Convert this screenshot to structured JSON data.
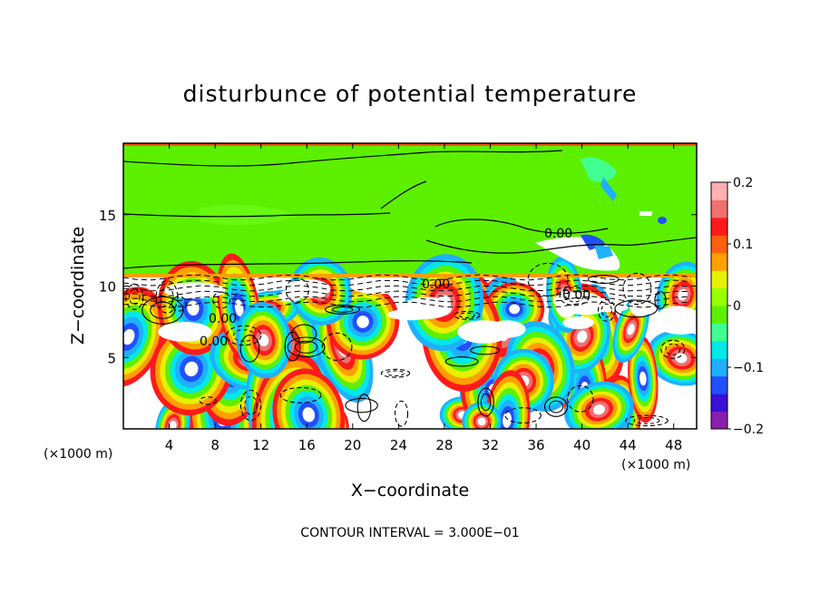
{
  "chart_data": {
    "type": "heatmap",
    "title": "disturbunce of potential temperature",
    "xlabel": "X−coordinate",
    "ylabel": "Z−coordinate",
    "x_unit": "(×1000 m)",
    "z_unit": "(×1000 m)",
    "xlim": [
      0,
      50
    ],
    "zlim": [
      0,
      20
    ],
    "x_ticks": [
      "4",
      "8",
      "12",
      "16",
      "20",
      "24",
      "28",
      "32",
      "36",
      "40",
      "44",
      "48"
    ],
    "z_ticks": [
      "5",
      "10",
      "15"
    ],
    "colorbar": {
      "range": [
        -0.2,
        0.2
      ],
      "tick_labels": [
        "0.2",
        "0.1",
        "0",
        "−0.1",
        "−0.2"
      ],
      "colors": [
        "#8a1fae",
        "#3a0fd8",
        "#2050ff",
        "#1fb0ff",
        "#00e8e8",
        "#40ff90",
        "#5cf000",
        "#99ff00",
        "#e6f000",
        "#ffa000",
        "#ff6010",
        "#ff1a1a",
        "#f07070",
        "#ffb0b0"
      ]
    },
    "contour_labels": [
      "0.00",
      "0.00",
      "0.00",
      "0.00",
      "0.00"
    ],
    "footer": "CONTOUR INTERVAL = 3.000E−01"
  }
}
